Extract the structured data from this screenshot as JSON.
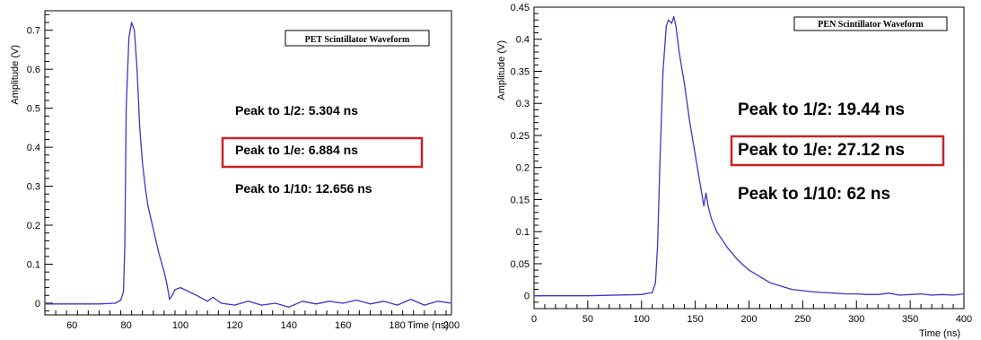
{
  "chart_data": [
    {
      "type": "line",
      "title": "PET  Scintillator Waveform",
      "xlabel": "Time (ns)",
      "ylabel": "Amplitude (V)",
      "xlim": [
        50,
        200
      ],
      "ylim": [
        -0.03,
        0.75
      ],
      "grid": false,
      "legend_placement": "top-right",
      "xticks": [
        60,
        80,
        100,
        120,
        140,
        160,
        180,
        200
      ],
      "yticks": [
        0,
        0.1,
        0.2,
        0.3,
        0.4,
        0.5,
        0.6,
        0.7
      ],
      "series": [
        {
          "color": "#4433cc",
          "x": [
            50,
            70,
            76,
            78,
            79,
            79.5,
            80,
            81,
            82,
            83,
            84,
            85,
            86,
            87,
            88,
            90,
            92,
            94,
            95,
            96,
            97,
            98,
            100,
            103,
            106,
            110,
            112,
            115,
            120,
            125,
            130,
            135,
            140,
            145,
            150,
            155,
            160,
            165,
            170,
            175,
            180,
            185,
            190,
            195,
            200
          ],
          "y": [
            -0.002,
            -0.002,
            0.0,
            0.008,
            0.03,
            0.15,
            0.5,
            0.68,
            0.72,
            0.7,
            0.6,
            0.45,
            0.36,
            0.3,
            0.25,
            0.19,
            0.13,
            0.08,
            0.05,
            0.01,
            0.02,
            0.035,
            0.04,
            0.03,
            0.02,
            0.005,
            0.015,
            0.0,
            -0.005,
            0.005,
            -0.005,
            0.0,
            -0.01,
            0.005,
            -0.002,
            0.005,
            0.0,
            0.008,
            -0.002,
            0.005,
            -0.005,
            0.01,
            -0.005,
            0.005,
            0.0
          ]
        }
      ],
      "annotations": [
        "Peak to 1/2: 5.304 ns",
        "Peak to 1/e: 6.884 ns",
        "Peak to 1/10: 12.656 ns"
      ],
      "highlighted_annotation": "Peak to 1/e: 6.884 ns",
      "highlight_color": "#cc2222"
    },
    {
      "type": "line",
      "title": "PEN  Scintillator Waveform",
      "xlabel": "Time (ns)",
      "ylabel": "Amplitude (V)",
      "xlim": [
        0,
        400
      ],
      "ylim": [
        -0.02,
        0.45
      ],
      "grid": false,
      "legend_placement": "top-right",
      "xticks": [
        0,
        50,
        100,
        150,
        200,
        250,
        300,
        350,
        400
      ],
      "yticks": [
        0,
        0.05,
        0.1,
        0.15,
        0.2,
        0.25,
        0.3,
        0.35,
        0.4,
        0.45
      ],
      "series": [
        {
          "color": "#4433cc",
          "x": [
            0,
            50,
            100,
            110,
            113,
            115,
            117,
            120,
            123,
            125,
            128,
            130,
            132,
            135,
            140,
            145,
            150,
            155,
            158,
            160,
            162,
            165,
            170,
            180,
            190,
            200,
            210,
            220,
            230,
            240,
            250,
            260,
            270,
            280,
            290,
            300,
            310,
            320,
            330,
            340,
            350,
            360,
            370,
            380,
            390,
            400
          ],
          "y": [
            0.0,
            0.0,
            0.002,
            0.005,
            0.02,
            0.08,
            0.2,
            0.35,
            0.42,
            0.43,
            0.425,
            0.435,
            0.42,
            0.38,
            0.33,
            0.27,
            0.22,
            0.17,
            0.14,
            0.16,
            0.14,
            0.12,
            0.1,
            0.075,
            0.055,
            0.04,
            0.03,
            0.02,
            0.015,
            0.01,
            0.008,
            0.006,
            0.005,
            0.004,
            0.003,
            0.003,
            0.002,
            0.002,
            0.004,
            0.001,
            0.002,
            0.003,
            0.001,
            0.002,
            0.001,
            0.003
          ]
        }
      ],
      "annotations": [
        "Peak to 1/2: 19.44 ns",
        "Peak to 1/e: 27.12 ns",
        "Peak to 1/10: 62 ns"
      ],
      "highlighted_annotation": "Peak to 1/e: 27.12 ns",
      "highlight_color": "#cc2222"
    }
  ]
}
